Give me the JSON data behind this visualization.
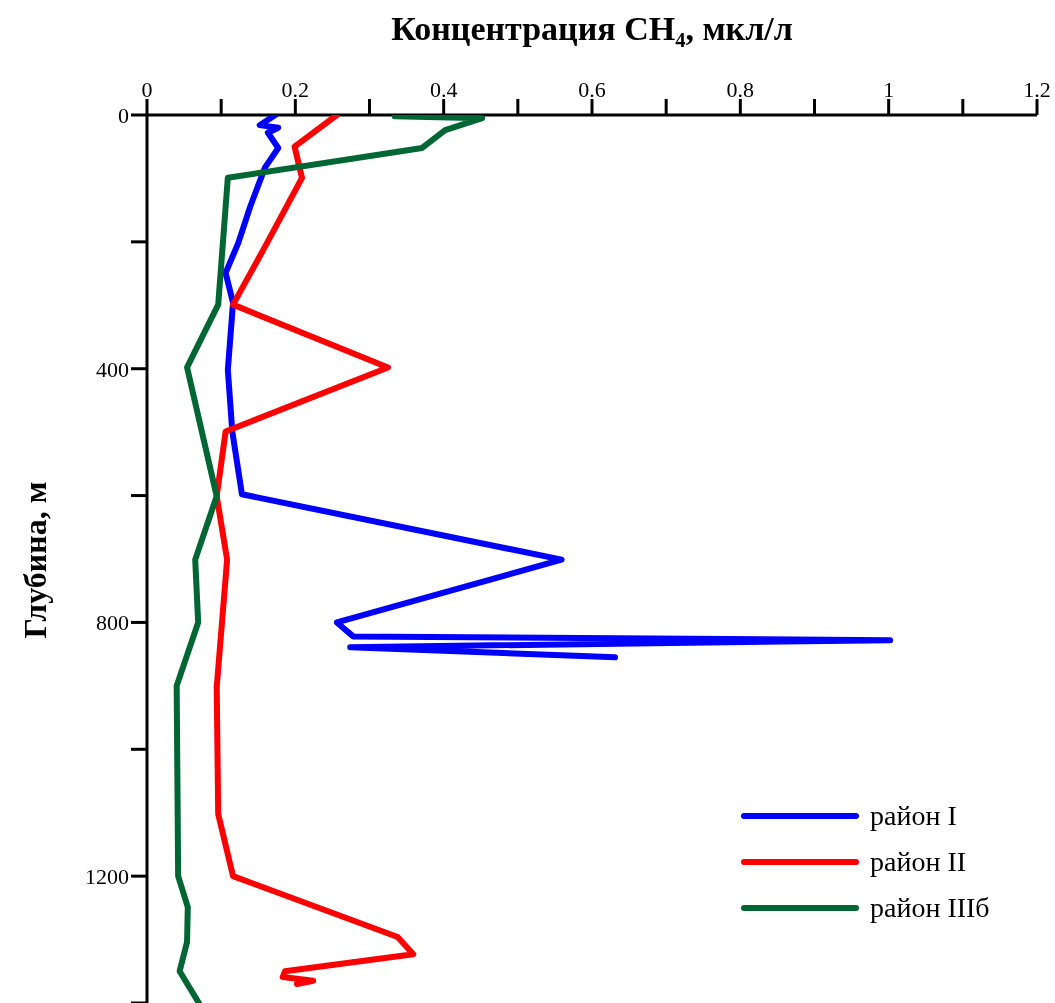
{
  "chart_data": {
    "type": "line",
    "title": "Концентрация CH₄, мкл/л",
    "ylabel": "Глубина, м",
    "xlim": [
      0,
      1.2
    ],
    "xticks": [
      0,
      {
        "value": 0.1,
        "label": null
      },
      0.2,
      {
        "value": 0.3,
        "label": null
      },
      0.4,
      {
        "value": 0.5,
        "label": null
      },
      0.6,
      {
        "value": 0.7,
        "label": null
      },
      0.8,
      {
        "value": 0.9,
        "label": null
      },
      1,
      {
        "value": 1.1,
        "label": null
      },
      1.2
    ],
    "ylim": [
      1400,
      0
    ],
    "yticks": [
      0,
      {
        "value": 200,
        "label": null
      },
      400,
      {
        "value": 600,
        "label": null
      },
      800,
      {
        "value": 1000,
        "label": null
      },
      1200,
      {
        "value": 1400,
        "label": null
      }
    ],
    "legend": "bottom right",
    "grid": false,
    "series": [
      {
        "name": "район I",
        "color": "#0000ff",
        "x": [
          0.173,
          0.152,
          0.177,
          0.163,
          0.177,
          0.159,
          0.139,
          0.123,
          0.106,
          0.116,
          0.109,
          0.115,
          0.128,
          0.559,
          0.256,
          0.278,
          1.002,
          0.274,
          0.631
        ],
        "values": [
          0,
          16,
          20,
          28,
          52,
          83,
          145,
          202,
          249,
          296,
          402,
          499,
          598,
          701,
          800,
          822,
          828,
          839,
          855
        ]
      },
      {
        "name": "район II",
        "color": "#ff0000",
        "x": [
          0.256,
          0.199,
          0.209,
          0.159,
          0.116,
          0.325,
          0.106,
          0.094,
          0.108,
          0.094,
          0.096,
          0.116,
          0.338,
          0.359,
          0.186,
          0.183,
          0.224,
          0.202
        ],
        "values": [
          0,
          50,
          99,
          208,
          299,
          398,
          499,
          601,
          701,
          902,
          1102,
          1200,
          1296,
          1323,
          1350,
          1359,
          1365,
          1370
        ]
      },
      {
        "name": "район IIIб",
        "color": "#006633",
        "x": [
          0.334,
          0.452,
          0.402,
          0.371,
          0.109,
          0.096,
          0.054,
          0.094,
          0.065,
          0.069,
          0.04,
          0.042,
          0.055,
          0.054,
          0.044,
          0.07
        ],
        "values": [
          2,
          5,
          24,
          52,
          99,
          299,
          398,
          601,
          701,
          800,
          900,
          1200,
          1249,
          1304,
          1350,
          1400
        ]
      }
    ]
  }
}
